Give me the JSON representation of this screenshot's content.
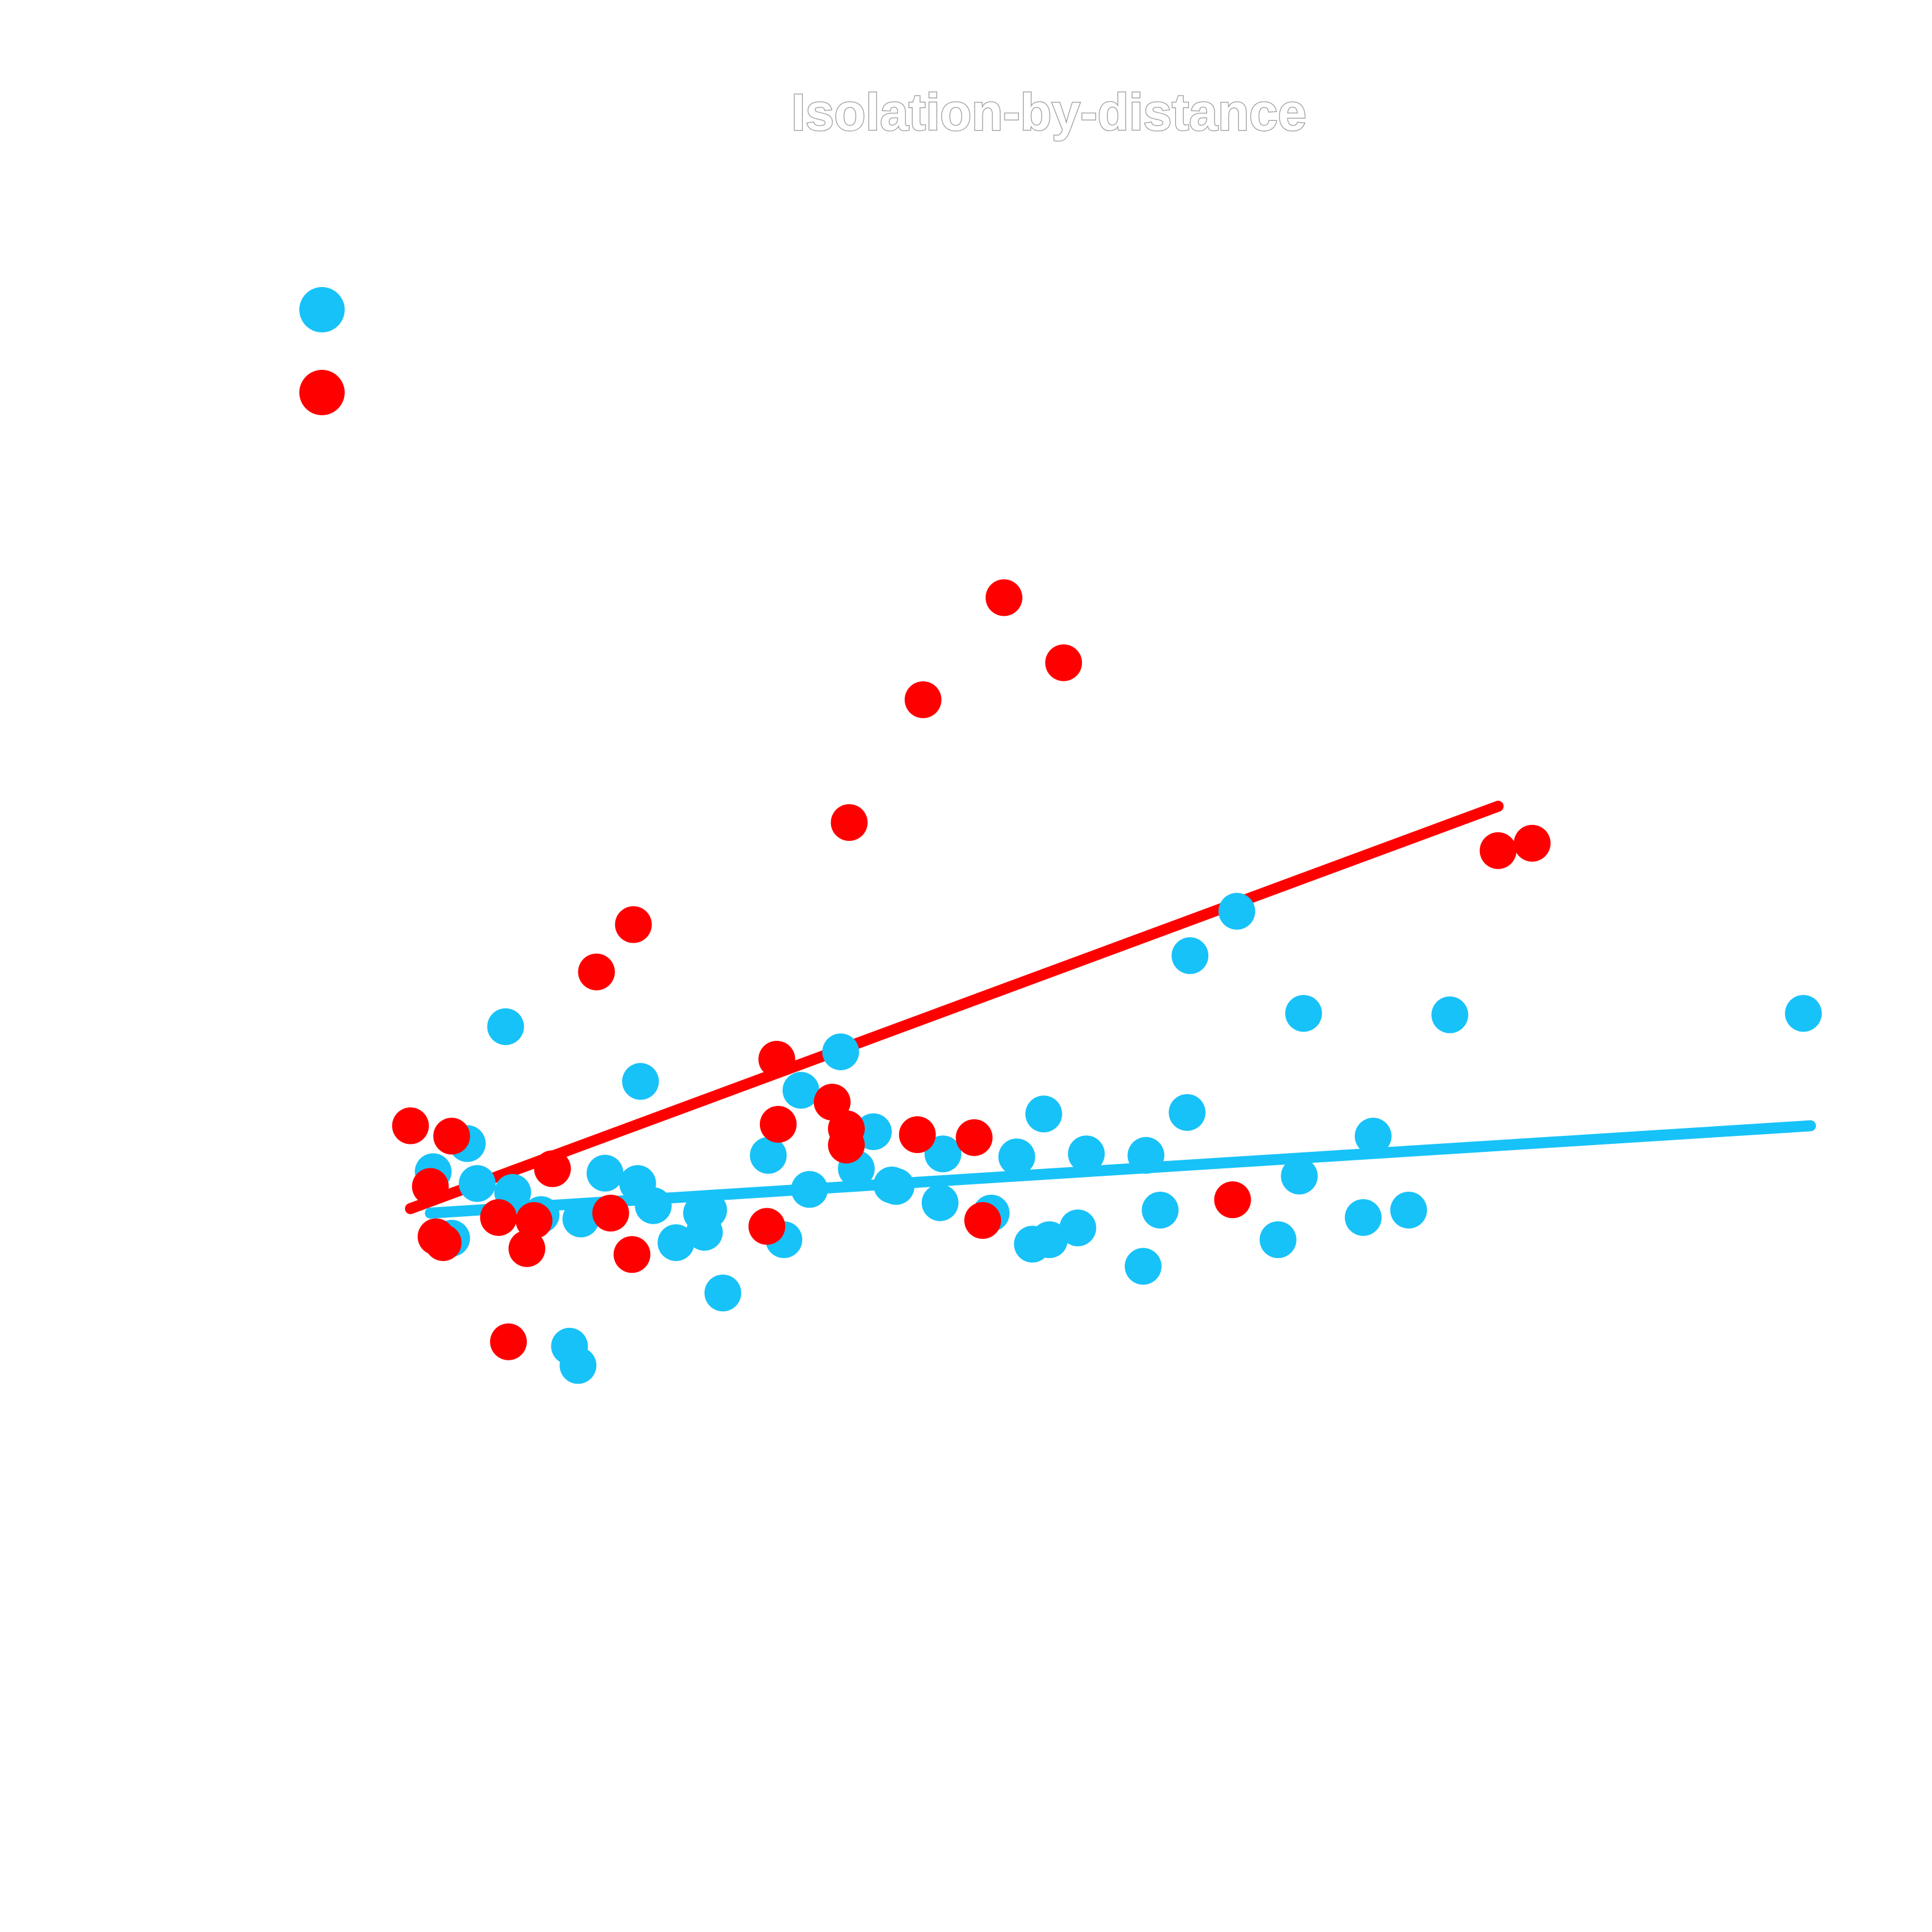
{
  "chart_data": {
    "type": "scatter",
    "title": "Isolation-by-distance",
    "xlabel": "",
    "ylabel": "",
    "grid": false,
    "legend": {
      "position": "top-left",
      "labels_shown": false
    },
    "x_range": [
      0,
      100
    ],
    "y_range": [
      0,
      100
    ],
    "series": [
      {
        "color": "#17c2f8",
        "points": [
          [
            2,
            40.7
          ],
          [
            4.4,
            42.6
          ],
          [
            5.1,
            39.9
          ],
          [
            3.3,
            36.2
          ],
          [
            7.1,
            50.5
          ],
          [
            7.6,
            39.3
          ],
          [
            9.6,
            37.8
          ],
          [
            12.4,
            37.5
          ],
          [
            16.6,
            46.8
          ],
          [
            11.6,
            28.9
          ],
          [
            12.2,
            27.6
          ],
          [
            14.1,
            40.6
          ],
          [
            16.4,
            39.9
          ],
          [
            17.5,
            38.4
          ],
          [
            20.9,
            37.9
          ],
          [
            19.1,
            35.9
          ],
          [
            21.1,
            36.6
          ],
          [
            22.4,
            32.5
          ],
          [
            21.4,
            38.1
          ],
          [
            25.6,
            41.8
          ],
          [
            27.9,
            46.2
          ],
          [
            30.7,
            48.8
          ],
          [
            34.3,
            39.8
          ],
          [
            37.7,
            38.6
          ],
          [
            31.8,
            40.9
          ],
          [
            28.5,
            39.5
          ],
          [
            33,
            43.4
          ],
          [
            34.6,
            39.7
          ],
          [
            26.7,
            36.1
          ],
          [
            37.9,
            41.9
          ],
          [
            41.3,
            37.9
          ],
          [
            43.1,
            41.7
          ],
          [
            45.4,
            36.1
          ],
          [
            45,
            44.6
          ],
          [
            48,
            41.9
          ],
          [
            44.2,
            35.8
          ],
          [
            47.4,
            36.9
          ],
          [
            55.1,
            44.7
          ],
          [
            53.2,
            38.1
          ],
          [
            55.3,
            55.3
          ],
          [
            52.2,
            41.8
          ],
          [
            52,
            34.3
          ],
          [
            63.3,
            51.4
          ],
          [
            61.5,
            36.1
          ],
          [
            67.5,
            37.6
          ],
          [
            68.2,
            43.1
          ],
          [
            70.7,
            38.1
          ],
          [
            73.6,
            51.3
          ],
          [
            63,
            40.4
          ],
          [
            98.5,
            51.4
          ],
          [
            58.6,
            58.3
          ]
        ]
      },
      {
        "color": "#ff0000",
        "points": [
          [
            0.4,
            43.8
          ],
          [
            3.3,
            43.1
          ],
          [
            1.8,
            39.7
          ],
          [
            2.2,
            36.3
          ],
          [
            2.7,
            35.9
          ],
          [
            6.6,
            37.6
          ],
          [
            9.1,
            37.4
          ],
          [
            8.6,
            35.5
          ],
          [
            10.4,
            40.9
          ],
          [
            13.5,
            54.2
          ],
          [
            14.5,
            37.9
          ],
          [
            16.1,
            57.4
          ],
          [
            16,
            35.1
          ],
          [
            25.5,
            37
          ],
          [
            26.3,
            43.9
          ],
          [
            26.2,
            48.3
          ],
          [
            30.1,
            45.4
          ],
          [
            31.1,
            43.6
          ],
          [
            31.3,
            64.3
          ],
          [
            31.1,
            42.5
          ],
          [
            36.5,
            72.6
          ],
          [
            42.2,
            79.5
          ],
          [
            46.4,
            75.1
          ],
          [
            36.1,
            43.2
          ],
          [
            40.1,
            43
          ],
          [
            40.7,
            37.4
          ],
          [
            58.3,
            38.8
          ],
          [
            7.3,
            29.2
          ],
          [
            77,
            62.4
          ],
          [
            79.4,
            62.9
          ]
        ]
      }
    ],
    "fit_lines": [
      {
        "color": "#17c2f8",
        "x": [
          1.8,
          99
        ],
        "y": [
          37.9,
          43.8
        ]
      },
      {
        "color": "#ff0000",
        "x": [
          0.4,
          77
        ],
        "y": [
          38.2,
          65.4
        ]
      }
    ]
  }
}
